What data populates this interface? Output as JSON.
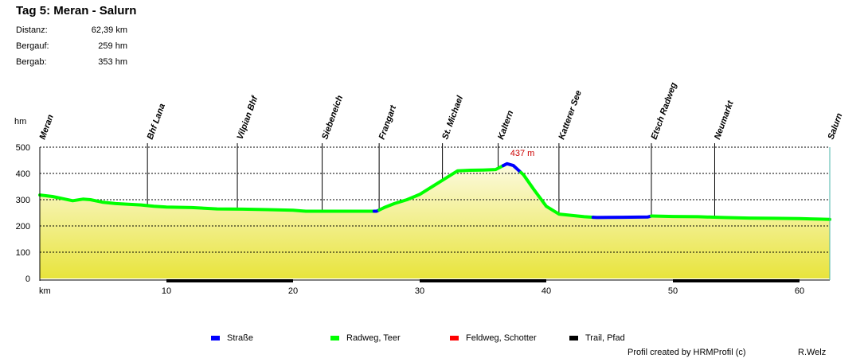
{
  "header": {
    "title": "Tag 5: Meran - Salurn",
    "stats": [
      {
        "label": "Distanz:",
        "value": "62,39 km"
      },
      {
        "label": "Bergauf:",
        "value": "259 hm"
      },
      {
        "label": "Bergab:",
        "value": "353 hm"
      }
    ]
  },
  "chart_data": {
    "type": "area",
    "ylabel": "hm",
    "xlabel": "km",
    "xlim": [
      0,
      62.39
    ],
    "ylim": [
      0,
      500
    ],
    "x_ticks": [
      10,
      20,
      30,
      40,
      50,
      60
    ],
    "y_ticks": [
      0,
      100,
      200,
      300,
      400,
      500
    ],
    "grid": true,
    "peak_annotation": {
      "x": 36.9,
      "y": 437,
      "label": "437 m"
    },
    "waypoints": [
      {
        "name": "Meran",
        "km": 0
      },
      {
        "name": "Bhf Lana",
        "km": 8.5
      },
      {
        "name": "Vilpian Bhf",
        "km": 15.6
      },
      {
        "name": "Siebeneich",
        "km": 22.3
      },
      {
        "name": "Frangart",
        "km": 26.8
      },
      {
        "name": "St. Michael",
        "km": 31.8
      },
      {
        "name": "Kaltern",
        "km": 36.2
      },
      {
        "name": "Katterer See",
        "km": 41.0
      },
      {
        "name": "Etsch Radweg",
        "km": 48.3
      },
      {
        "name": "Neumarkt",
        "km": 53.3
      },
      {
        "name": "Salurn",
        "km": 62.39
      }
    ],
    "profile": [
      [
        0,
        318
      ],
      [
        1,
        312
      ],
      [
        2,
        302
      ],
      [
        2.6,
        296
      ],
      [
        3.4,
        302
      ],
      [
        4,
        300
      ],
      [
        5,
        290
      ],
      [
        6,
        285
      ],
      [
        8,
        280
      ],
      [
        9,
        275
      ],
      [
        10,
        272
      ],
      [
        12,
        270
      ],
      [
        14,
        265
      ],
      [
        16,
        264
      ],
      [
        18,
        262
      ],
      [
        20,
        260
      ],
      [
        21,
        256
      ],
      [
        24,
        256
      ],
      [
        26.6,
        256
      ],
      [
        27.2,
        270
      ],
      [
        28,
        285
      ],
      [
        29,
        300
      ],
      [
        30,
        320
      ],
      [
        31,
        350
      ],
      [
        32,
        380
      ],
      [
        33,
        410
      ],
      [
        34,
        412
      ],
      [
        35,
        413
      ],
      [
        36,
        415
      ],
      [
        36.9,
        437
      ],
      [
        37.4,
        430
      ],
      [
        38.2,
        395
      ],
      [
        39,
        340
      ],
      [
        40,
        275
      ],
      [
        41,
        245
      ],
      [
        42,
        240
      ],
      [
        43,
        235
      ],
      [
        44,
        232
      ],
      [
        46,
        233
      ],
      [
        48,
        234
      ],
      [
        48.3,
        238
      ],
      [
        50,
        236
      ],
      [
        52,
        235
      ],
      [
        54,
        232
      ],
      [
        56,
        230
      ],
      [
        58,
        229
      ],
      [
        60,
        228
      ],
      [
        61.5,
        226
      ],
      [
        62.39,
        225
      ]
    ],
    "surface_segments": [
      {
        "type": "radweg",
        "from": 0,
        "to": 26.4
      },
      {
        "type": "strasse",
        "from": 26.4,
        "to": 26.8
      },
      {
        "type": "radweg",
        "from": 26.8,
        "to": 36.6
      },
      {
        "type": "strasse",
        "from": 36.6,
        "to": 38.0
      },
      {
        "type": "radweg",
        "from": 38.0,
        "to": 43.7
      },
      {
        "type": "strasse",
        "from": 43.7,
        "to": 48.3
      },
      {
        "type": "radweg",
        "from": 48.3,
        "to": 62.39
      }
    ],
    "km_bands": [
      [
        10,
        20
      ],
      [
        30,
        40
      ],
      [
        50,
        60
      ]
    ]
  },
  "colors": {
    "strasse": "#0000ff",
    "radweg": "#00ff00",
    "feldweg": "#ff0000",
    "trail": "#000000",
    "fill_top": "#fcfae0",
    "fill_bottom": "#e8e43c",
    "annotation": "#cc0000"
  },
  "legend": [
    {
      "key": "strasse",
      "label": "Straße"
    },
    {
      "key": "radweg",
      "label": "Radweg, Teer"
    },
    {
      "key": "feldweg",
      "label": "Feldweg, Schotter"
    },
    {
      "key": "trail",
      "label": "Trail, Pfad"
    }
  ],
  "footer": {
    "credit": "Profil created by HRMProfil (c)",
    "author": "R.Welz"
  }
}
